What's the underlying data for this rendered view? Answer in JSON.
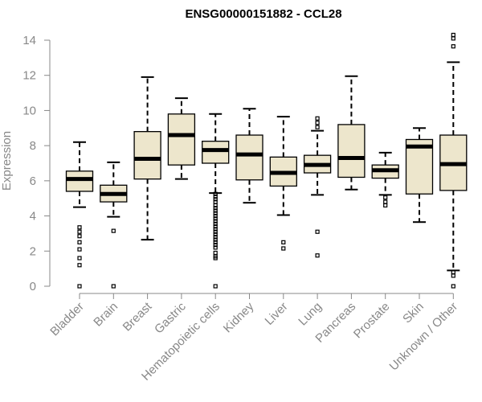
{
  "chart_data": {
    "type": "box",
    "title": "ENSG00000151882 - CCL28",
    "ylabel": "Expression",
    "ylim": [
      0,
      14
    ],
    "yticks": [
      0,
      2,
      4,
      6,
      8,
      10,
      12,
      14
    ],
    "box_fill": "#EDE6CC",
    "categories": [
      "Bladder",
      "Brain",
      "Breast",
      "Gastric",
      "Hematopoietic cells",
      "Kidney",
      "Liver",
      "Lung",
      "Pancreas",
      "Prostate",
      "Skin",
      "Unknown / Other"
    ],
    "boxes": [
      {
        "q1": 5.4,
        "median": 6.1,
        "q3": 6.55,
        "whisker_low": 4.5,
        "whisker_high": 8.2,
        "outliers": [
          3.35,
          3.1,
          2.85,
          2.5,
          2.1,
          1.6,
          1.2,
          0.0
        ]
      },
      {
        "q1": 4.8,
        "median": 5.25,
        "q3": 5.75,
        "whisker_low": 3.95,
        "whisker_high": 7.05,
        "outliers": [
          3.15,
          0.0
        ]
      },
      {
        "q1": 6.1,
        "median": 7.25,
        "q3": 8.8,
        "whisker_low": 2.65,
        "whisker_high": 11.9,
        "outliers": []
      },
      {
        "q1": 6.9,
        "median": 8.6,
        "q3": 9.8,
        "whisker_low": 6.1,
        "whisker_high": 10.7,
        "outliers": []
      },
      {
        "q1": 7.0,
        "median": 7.75,
        "q3": 8.25,
        "whisker_low": 5.3,
        "whisker_high": 9.8,
        "outliers": [
          5.25,
          5.1,
          4.95,
          4.8,
          4.6,
          4.45,
          4.3,
          4.15,
          4.0,
          3.85,
          3.7,
          3.55,
          3.4,
          3.25,
          3.1,
          2.95,
          2.8,
          2.65,
          2.5,
          2.35,
          2.2,
          1.9,
          1.7,
          1.6,
          0.0
        ]
      },
      {
        "q1": 6.05,
        "median": 7.5,
        "q3": 8.6,
        "whisker_low": 4.75,
        "whisker_high": 10.1,
        "outliers": []
      },
      {
        "q1": 5.7,
        "median": 6.45,
        "q3": 7.35,
        "whisker_low": 4.05,
        "whisker_high": 9.65,
        "outliers": [
          2.5,
          2.15
        ]
      },
      {
        "q1": 6.45,
        "median": 6.9,
        "q3": 7.45,
        "whisker_low": 5.2,
        "whisker_high": 8.85,
        "outliers": [
          9.55,
          9.3,
          9.05,
          3.1,
          1.75
        ]
      },
      {
        "q1": 6.2,
        "median": 7.3,
        "q3": 9.2,
        "whisker_low": 5.5,
        "whisker_high": 11.95,
        "outliers": []
      },
      {
        "q1": 6.15,
        "median": 6.6,
        "q3": 6.9,
        "whisker_low": 5.2,
        "whisker_high": 7.6,
        "outliers": [
          5.05,
          4.8,
          4.6
        ]
      },
      {
        "q1": 5.25,
        "median": 7.95,
        "q3": 8.35,
        "whisker_low": 3.65,
        "whisker_high": 9.0,
        "outliers": []
      },
      {
        "q1": 5.45,
        "median": 6.95,
        "q3": 8.6,
        "whisker_low": 0.9,
        "whisker_high": 12.75,
        "outliers": [
          14.3,
          14.1,
          13.65,
          0.8,
          0.6,
          0.0
        ]
      }
    ]
  }
}
